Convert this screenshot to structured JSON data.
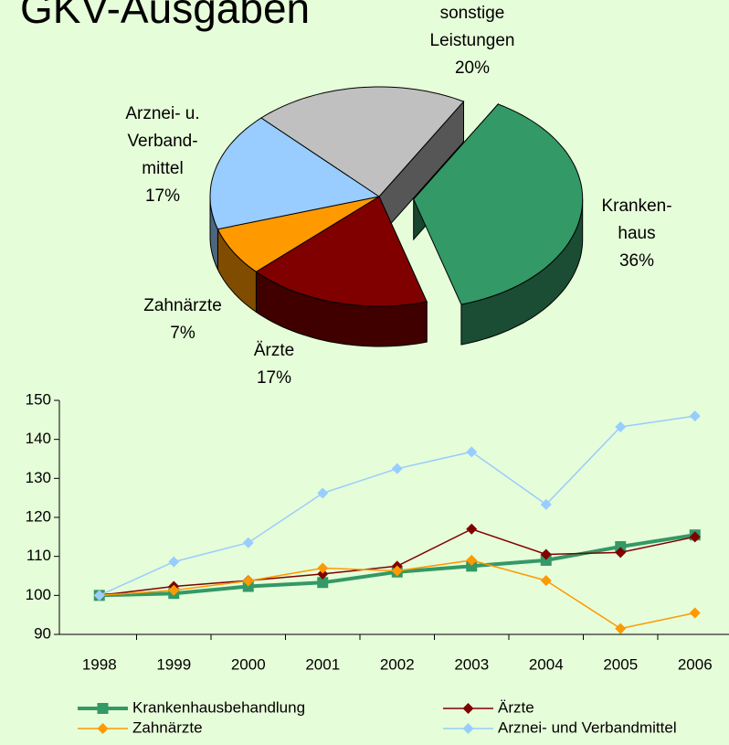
{
  "chart_data": [
    {
      "type": "pie",
      "title": "GKV-Ausgaben",
      "categories": [
        "Kranken-\nhaus",
        "Ärzte",
        "Zahnärzte",
        "Arznei- u.\nVerband-\nmittel",
        "sonstige\nLeistungen"
      ],
      "values": [
        36,
        17,
        7,
        17,
        20
      ],
      "value_labels": [
        "36%",
        "17%",
        "7%",
        "17%",
        "20%"
      ],
      "colors": [
        "#339966",
        "#800000",
        "#ff9900",
        "#99ccff",
        "#c0c0c0"
      ]
    },
    {
      "type": "line",
      "categories": [
        "1998",
        "1999",
        "2000",
        "2001",
        "2002",
        "2003",
        "2004",
        "2005",
        "2006"
      ],
      "ylim": [
        90,
        150
      ],
      "yticks": [
        90,
        100,
        110,
        120,
        130,
        140,
        150
      ],
      "series": [
        {
          "name": "Krankenhausbehandlung",
          "color": "#339966",
          "marker": "square",
          "values": [
            100,
            100.5,
            102.3,
            103.3,
            106,
            107.5,
            109,
            112.5,
            115.5
          ]
        },
        {
          "name": "Ärzte",
          "color": "#800000",
          "marker": "diamond",
          "values": [
            100,
            102.3,
            103.8,
            105.5,
            107.5,
            117,
            110.5,
            111,
            115
          ]
        },
        {
          "name": "Zahnärzte",
          "color": "#ff9900",
          "marker": "diamond",
          "values": [
            100,
            101.3,
            103.7,
            107,
            106.3,
            109,
            103.8,
            91.5,
            95.5
          ]
        },
        {
          "name": "Arznei- und Verbandmittel",
          "color": "#99ccff",
          "marker": "diamond",
          "values": [
            100,
            108.6,
            113.5,
            126.2,
            132.5,
            136.8,
            123.3,
            143.2,
            146
          ]
        }
      ]
    }
  ]
}
